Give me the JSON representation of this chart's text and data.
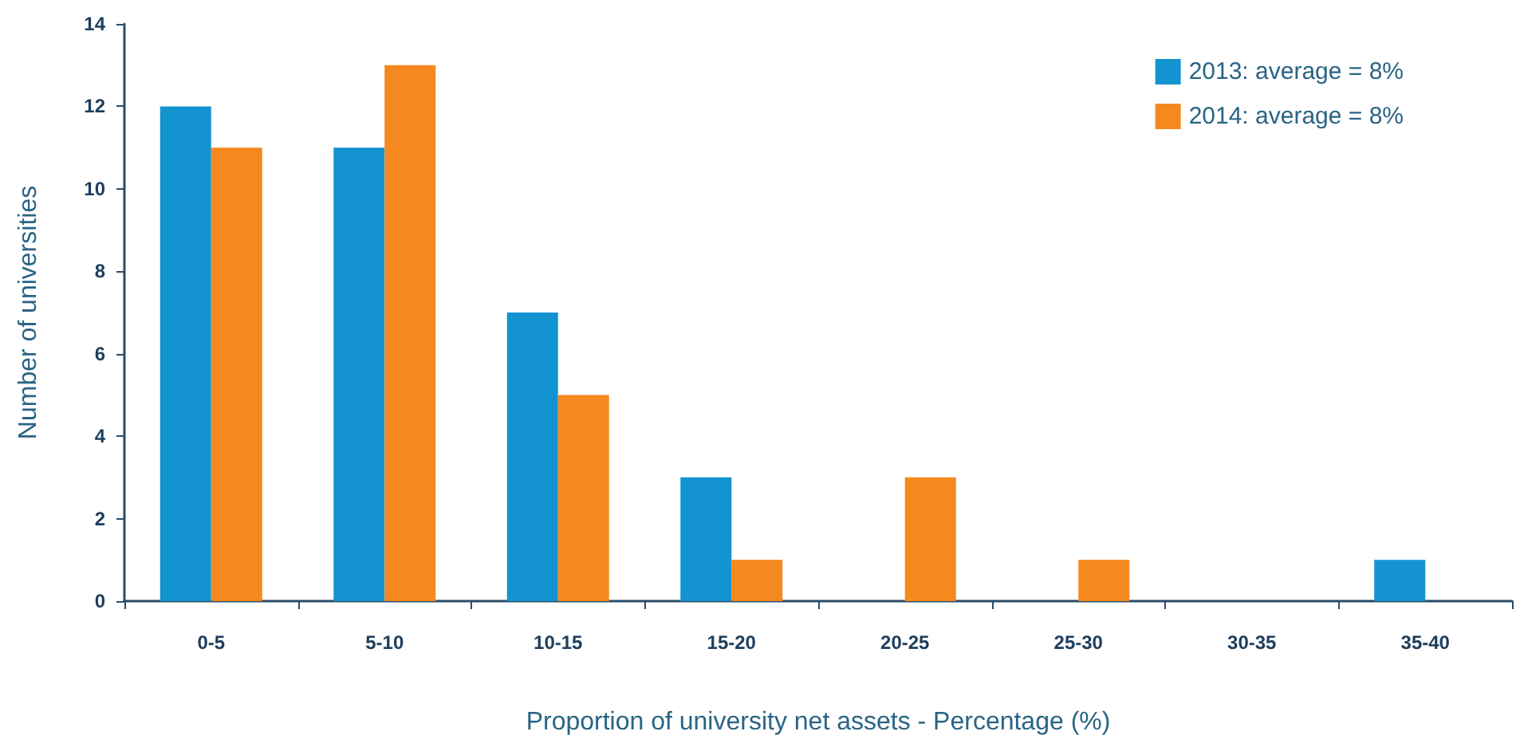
{
  "chart_data": {
    "type": "bar",
    "xlabel": "Proportion of university net assets - Percentage (%)",
    "ylabel": "Number of universities",
    "categories": [
      "0-5",
      "5-10",
      "10-15",
      "15-20",
      "20-25",
      "25-30",
      "30-35",
      "35-40"
    ],
    "series": [
      {
        "name": "2013: average = 8%",
        "color": "#1393d0",
        "values": [
          12,
          11,
          7,
          3,
          0,
          0,
          0,
          1
        ]
      },
      {
        "name": "2014: average = 8%",
        "color": "#f5881f",
        "values": [
          11,
          13,
          5,
          1,
          3,
          1,
          0,
          0
        ]
      }
    ],
    "ylim": [
      0,
      14
    ],
    "yticks": [
      0,
      2,
      4,
      6,
      8,
      10,
      12,
      14
    ],
    "grid": false,
    "legend": "top right"
  }
}
